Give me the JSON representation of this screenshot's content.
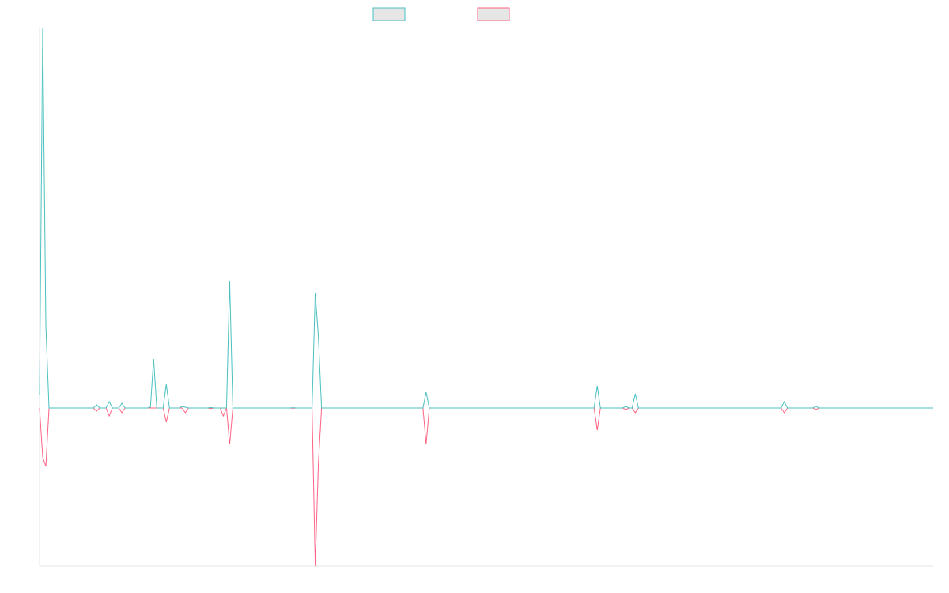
{
  "chart_data": {
    "type": "line",
    "ylim": [
      -100,
      240
    ],
    "series": [
      {
        "color": "#4bc0c0",
        "values": [
          8,
          240,
          52,
          0,
          0,
          0,
          0,
          0,
          0,
          0,
          0,
          0,
          0,
          0,
          0,
          0,
          0,
          0,
          2,
          0,
          0,
          0,
          4,
          0,
          0,
          0,
          3,
          0,
          0,
          0,
          0,
          0,
          0,
          0,
          0,
          0.5,
          31,
          0,
          0,
          0,
          15,
          0,
          0,
          0,
          0,
          1,
          0.5,
          0,
          0,
          0,
          0,
          0,
          0,
          0,
          0.3,
          0,
          0,
          0,
          0,
          0,
          80,
          0,
          0,
          0,
          0,
          0,
          0,
          0,
          0,
          0,
          0,
          0,
          0,
          0,
          0,
          0,
          0,
          0,
          0,
          0,
          0.2,
          0,
          0,
          0,
          0,
          0,
          0,
          73,
          45,
          0,
          0,
          0,
          0,
          0,
          0,
          0,
          0,
          0,
          0,
          0,
          0,
          0,
          0,
          0,
          0,
          0,
          0,
          0,
          0,
          0,
          0,
          0,
          0,
          0,
          0,
          0,
          0,
          0,
          0,
          0,
          0,
          0,
          10,
          0,
          0,
          0,
          0,
          0,
          0,
          0,
          0,
          0,
          0,
          0,
          0,
          0,
          0,
          0,
          0,
          0,
          0,
          0,
          0,
          0,
          0,
          0,
          0,
          0,
          0,
          0,
          0,
          0,
          0,
          0,
          0,
          0,
          0,
          0,
          0,
          0,
          0,
          0,
          0,
          0,
          0,
          0,
          0,
          0,
          0,
          0,
          0,
          0,
          0,
          0,
          0,
          0,
          14,
          0,
          0,
          0,
          0,
          0,
          0,
          0,
          0,
          1,
          0,
          0,
          9,
          0,
          0,
          0,
          0,
          0,
          0,
          0,
          0,
          0,
          0,
          0,
          0,
          0,
          0,
          0,
          0,
          0,
          0,
          0,
          0,
          0,
          0,
          0,
          0,
          0,
          0,
          0,
          0,
          0,
          0,
          0,
          0,
          0,
          0,
          0,
          0,
          0,
          0,
          0,
          0,
          0,
          0,
          0,
          0,
          0,
          0,
          4,
          0,
          0,
          0,
          0,
          0,
          0,
          0,
          0,
          0,
          1,
          0,
          0,
          0,
          0,
          0,
          0,
          0,
          0,
          0,
          0,
          0,
          0,
          0,
          0,
          0,
          0,
          0,
          0,
          0,
          0,
          0,
          0,
          0,
          0,
          0,
          0,
          0,
          0,
          0,
          0,
          0,
          0,
          0,
          0,
          0,
          0,
          0
        ]
      },
      {
        "color": "#ff6384",
        "values": [
          0,
          -31,
          -37,
          0,
          0,
          0,
          0,
          0,
          0,
          0,
          0,
          0,
          0,
          0,
          0,
          0,
          0,
          0,
          -2,
          0,
          0,
          0,
          -5,
          0,
          0,
          0,
          -3,
          0,
          0,
          0,
          0,
          0,
          0,
          0,
          0,
          0,
          0,
          0,
          0,
          0,
          -9,
          0,
          0,
          0,
          0,
          0,
          -3,
          0,
          0,
          0,
          0,
          0,
          0,
          0,
          -0.3,
          0,
          0,
          0,
          -5,
          0,
          -23,
          0,
          0,
          0,
          0,
          0,
          0,
          0,
          0,
          0,
          0,
          0,
          0,
          0,
          0,
          0,
          0,
          0,
          0,
          0,
          -0.2,
          0,
          0,
          0,
          0,
          0,
          0,
          -100,
          -35,
          0,
          0,
          0,
          0,
          0,
          0,
          0,
          0,
          0,
          0,
          0,
          0,
          0,
          0,
          0,
          0,
          0,
          0,
          0,
          0,
          0,
          0,
          0,
          0,
          0,
          0,
          0,
          0,
          0,
          0,
          0,
          0,
          0,
          -23,
          0,
          0,
          0,
          0,
          0,
          0,
          0,
          0,
          0,
          0,
          0,
          0,
          0,
          0,
          0,
          0,
          0,
          0,
          0,
          0,
          0,
          0,
          0,
          0,
          0,
          0,
          0,
          0,
          0,
          0,
          0,
          0,
          0,
          0,
          0,
          0,
          0,
          0,
          0,
          0,
          0,
          0,
          0,
          0,
          0,
          0,
          0,
          0,
          0,
          0,
          0,
          0,
          0,
          -14,
          0,
          0,
          0,
          0,
          0,
          0,
          0,
          0,
          -1,
          0,
          0,
          -3,
          0,
          0,
          0,
          0,
          0,
          0,
          0,
          0,
          0,
          0,
          0,
          0,
          0,
          0,
          0,
          0,
          0,
          0,
          0,
          0,
          0,
          0,
          0,
          0,
          0,
          0,
          0,
          0,
          0,
          0,
          0,
          0,
          0,
          0,
          0,
          0,
          0,
          0,
          0,
          0,
          0,
          0,
          0,
          0,
          0,
          0,
          -3,
          0,
          0,
          0,
          0,
          0,
          0,
          0,
          0,
          0,
          -1,
          0,
          0,
          0,
          0,
          0,
          0,
          0,
          0,
          0,
          0,
          0,
          0,
          0,
          0,
          0,
          0,
          0,
          0,
          0,
          0,
          0,
          0,
          0,
          0,
          0,
          0,
          0,
          0,
          0,
          0,
          0,
          0,
          0,
          0,
          0,
          0,
          0
        ]
      }
    ]
  }
}
